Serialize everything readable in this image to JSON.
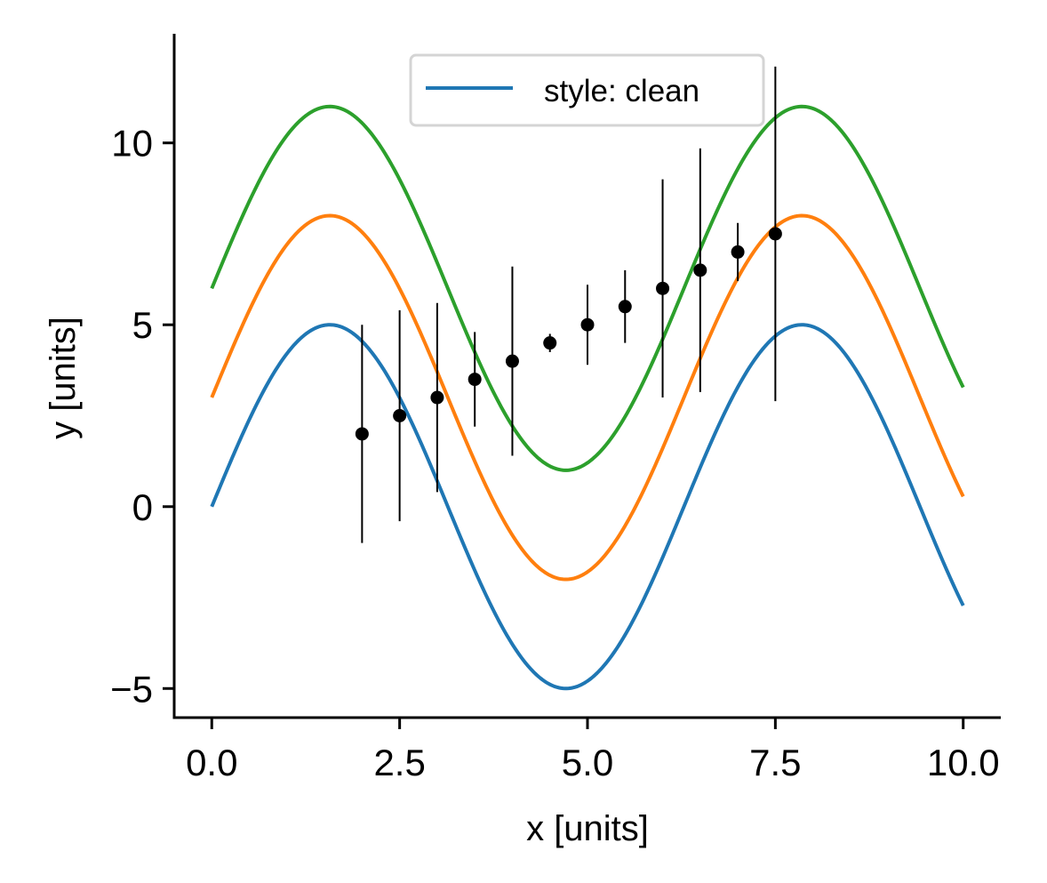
{
  "chart_data": {
    "type": "line",
    "title": "",
    "xlabel": "x [units]",
    "ylabel": "y [units]",
    "xlim": [
      -0.5,
      10.5
    ],
    "ylim": [
      -5.8,
      13.0
    ],
    "grid": false,
    "legend": {
      "position": "top-center",
      "entries": [
        "style: clean"
      ]
    },
    "x_ticks": [
      0.0,
      2.5,
      5.0,
      7.5,
      10.0
    ],
    "x_tick_labels": [
      "0.0",
      "2.5",
      "5.0",
      "7.5",
      "10.0"
    ],
    "y_ticks": [
      -5,
      0,
      5,
      10
    ],
    "y_tick_labels": [
      "−5",
      "0",
      "5",
      "10"
    ],
    "series": [
      {
        "name": "style: clean",
        "kind": "line",
        "function": "5*sin(x) + 0",
        "x_range": [
          0,
          10
        ],
        "color": "#1f77b4"
      },
      {
        "name": "",
        "kind": "line",
        "function": "5*sin(x) + 3",
        "x_range": [
          0,
          10
        ],
        "color": "#ff7f0e"
      },
      {
        "name": "",
        "kind": "line",
        "function": "5*sin(x) + 6",
        "x_range": [
          0,
          10
        ],
        "color": "#2ca02c"
      },
      {
        "name": "",
        "kind": "errorbar",
        "color": "#000000",
        "x": [
          2.0,
          2.5,
          3.0,
          3.5,
          4.0,
          4.5,
          5.0,
          5.5,
          6.0,
          6.5,
          7.0,
          7.5
        ],
        "y": [
          2.0,
          2.5,
          3.0,
          3.5,
          4.0,
          4.5,
          5.0,
          5.5,
          6.0,
          6.5,
          7.0,
          7.5
        ],
        "yerr": [
          3.0,
          2.9,
          2.6,
          1.3,
          2.6,
          0.25,
          1.1,
          1.0,
          3.0,
          3.35,
          0.8,
          4.6
        ]
      }
    ]
  }
}
